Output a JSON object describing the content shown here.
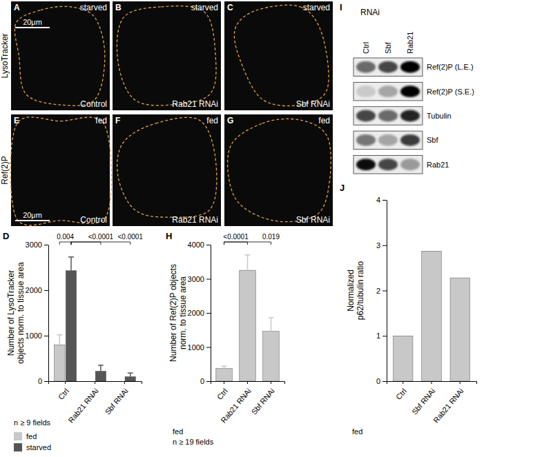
{
  "figure": {
    "row_labels": [
      "LysoTracker",
      "Ref(2)P"
    ],
    "images": [
      {
        "label": "A",
        "condition": "starved",
        "genotype": "Control",
        "scale_bar": "20μm"
      },
      {
        "label": "B",
        "condition": "starved",
        "genotype": "Rab21 RNAi"
      },
      {
        "label": "C",
        "condition": "starved",
        "genotype": "Sbf RNAi"
      },
      {
        "label": "E",
        "condition": "fed",
        "genotype": "Control",
        "scale_bar": "20μm"
      },
      {
        "label": "F",
        "condition": "fed",
        "genotype": "Rab21 RNAi"
      },
      {
        "label": "G",
        "condition": "fed",
        "genotype": "Sbf RNAi"
      }
    ]
  },
  "blot": {
    "label": "I",
    "title": "RNAi",
    "lanes": [
      "Ctrl",
      "Sbf",
      "Rab21"
    ],
    "rows": [
      {
        "name": "Ref(2)P (L.E.)",
        "intensity": [
          0.55,
          0.7,
          1.0
        ]
      },
      {
        "name": "Ref(2)P (S.E.)",
        "intensity": [
          0.15,
          0.3,
          1.0
        ]
      },
      {
        "name": "Tubulin",
        "intensity": [
          0.7,
          0.55,
          0.85
        ]
      },
      {
        "name": "Sbf",
        "intensity": [
          0.5,
          0.3,
          0.75
        ]
      },
      {
        "name": "Rab21",
        "intensity": [
          0.95,
          0.7,
          0.35
        ]
      }
    ]
  },
  "chart_data": [
    {
      "type": "bar",
      "label": "D",
      "y_label": [
        "Number of LysoTracker",
        "objects norm. to tissue area"
      ],
      "categories": [
        "Ctrl",
        "Rab21 RNAi",
        "Sbf RNAi"
      ],
      "series": [
        {
          "name": "fed",
          "color": "#c8c8c8",
          "values": [
            800,
            null,
            null
          ],
          "errors": [
            220,
            null,
            null
          ]
        },
        {
          "name": "starved",
          "color": "#555555",
          "values": [
            2430,
            220,
            100
          ],
          "errors": [
            300,
            130,
            80
          ]
        }
      ],
      "ylim": [
        0,
        3000
      ],
      "yticks": [
        0,
        1000,
        2000,
        3000
      ],
      "annotations": [
        "0.004",
        "<0.0001",
        "<0.0001"
      ],
      "notes": [
        "n ≥ 9 fields"
      ],
      "legend": "bottom-left"
    },
    {
      "type": "bar",
      "label": "H",
      "y_label": [
        "Number of Ref(2)P objects",
        "norm. to tissue area"
      ],
      "categories": [
        "Ctrl",
        "Rab21 RNAi",
        "Sbf RNAi"
      ],
      "values": [
        370,
        3250,
        1460
      ],
      "errors": [
        70,
        450,
        400
      ],
      "color": "#c8c8c8",
      "ylim": [
        0,
        4000
      ],
      "yticks": [
        0,
        1000,
        2000,
        3000,
        4000
      ],
      "annotations": [
        "<0.0001",
        "0.019"
      ],
      "notes": [
        "fed",
        "n ≥ 19 fields"
      ]
    },
    {
      "type": "bar",
      "label": "J",
      "y_label": [
        "Normalized",
        "p62/tubulin ratio"
      ],
      "categories": [
        "Ctrl",
        "Sbf RNAi",
        "Rab21 RNAi"
      ],
      "values": [
        1,
        2.87,
        2.28
      ],
      "color": "#c8c8c8",
      "ylim": [
        0,
        4
      ],
      "yticks": [
        0,
        1,
        2,
        3,
        4
      ],
      "notes": [
        "fed"
      ]
    }
  ]
}
